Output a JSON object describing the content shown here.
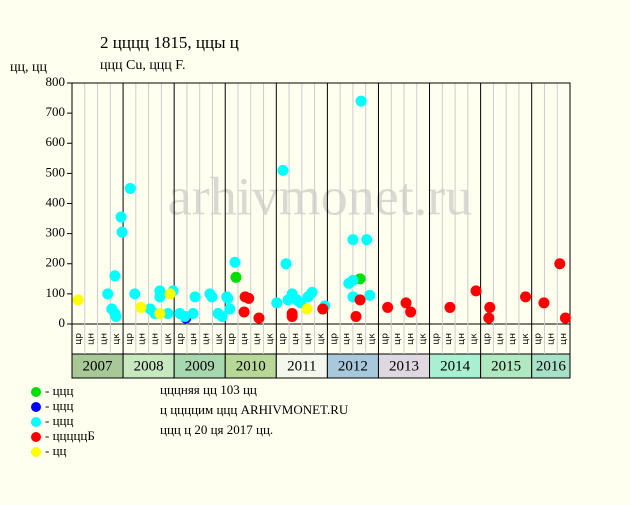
{
  "chart_data": {
    "type": "scatter",
    "title": "2 цццц 1815, ццы ц",
    "subtitle": "ццц Cu, ццц F.",
    "y_label": "цц, цц",
    "watermark": "arhivmonet.ru",
    "ylim": [
      0,
      800
    ],
    "yticks": [
      0,
      100,
      200,
      300,
      400,
      500,
      600,
      700,
      800
    ],
    "xlim": [
      2007,
      2016.75
    ],
    "year_labels": [
      "2007",
      "2008",
      "2009",
      "2010",
      "2011",
      "2012",
      "2013",
      "2014",
      "2015",
      "2016"
    ],
    "year_colors": [
      "#a8c898",
      "#c8e8c0",
      "#a8d8b0",
      "#b8d898",
      "#f4f8ec",
      "#a8c8dc",
      "#e0d8e0",
      "#a8f0d0",
      "#b0e8c0",
      "#a8e0c8"
    ],
    "column_labels": [
      "цр",
      "цн",
      "цн",
      "цк",
      "цр",
      "цн",
      "цн",
      "цк",
      "цр",
      "цн",
      "цн",
      "цк",
      "цр",
      "цн",
      "цн",
      "цк",
      "цр",
      "цн",
      "цн",
      "цк",
      "цр",
      "цн",
      "цн",
      "цк",
      "цр",
      "цн",
      "цн",
      "цк",
      "цр",
      "цн",
      "цн",
      "цк",
      "цр",
      "цн",
      "цн",
      "цк",
      "цр",
      "цн",
      "цн"
    ],
    "series": [
      {
        "name": "- ццц",
        "color": "#00e000",
        "x": [
          2010.21,
          2012.64
        ],
        "values": [
          155,
          150
        ]
      },
      {
        "name": "- ццц",
        "color": "#0000ff",
        "x": [
          2009.23
        ],
        "values": [
          20
        ]
      },
      {
        "name": "- ццц",
        "color": "#00ffff",
        "x": [
          2007.7,
          2007.78,
          2007.84,
          2007.86,
          2007.84,
          2007.96,
          2007.98,
          2008.14,
          2008.23,
          2008.53,
          2008.62,
          2008.72,
          2008.72,
          2008.88,
          2008.98,
          2009.11,
          2009.21,
          2009.37,
          2009.41,
          2009.7,
          2009.74,
          2009.86,
          2009.94,
          2010.03,
          2010.05,
          2010.09,
          2010.19,
          2011.01,
          2011.13,
          2011.19,
          2011.23,
          2011.31,
          2011.4,
          2011.48,
          2011.62,
          2011.7,
          2011.95,
          2012.42,
          2012.5,
          2012.5,
          2012.5,
          2012.66,
          2012.77,
          2012.83
        ],
        "values": [
          100,
          50,
          35,
          25,
          160,
          355,
          305,
          450,
          100,
          50,
          35,
          110,
          90,
          35,
          110,
          35,
          25,
          35,
          90,
          100,
          90,
          35,
          25,
          90,
          85,
          50,
          205,
          70,
          510,
          200,
          80,
          100,
          80,
          70,
          90,
          105,
          60,
          135,
          280,
          145,
          90,
          740,
          280,
          95
        ]
      },
      {
        "name": "- цццццБ",
        "color": "#ff0000",
        "x": [
          2010.39,
          2010.46,
          2010.37,
          2010.66,
          2011.31,
          2011.31,
          2011.91,
          2012.56,
          2012.64,
          2013.18,
          2013.54,
          2013.63,
          2014.4,
          2014.91,
          2015.16,
          2015.18,
          2015.88,
          2016.24,
          2016.55,
          2016.66
        ],
        "values": [
          90,
          85,
          40,
          20,
          25,
          35,
          50,
          25,
          80,
          55,
          70,
          40,
          55,
          110,
          20,
          55,
          90,
          70,
          200,
          20
        ]
      },
      {
        "name": "- цц",
        "color": "#ffff00",
        "x": [
          2007.12,
          2008.35,
          2008.72,
          2008.92,
          2011.6
        ],
        "values": [
          80,
          55,
          35,
          100,
          50
        ]
      }
    ],
    "footer": [
      "цццняя цц 103 цц",
      "ц ццццим ццц ARHIVMONET.RU",
      "ццц ц 20 ця 2017 цц."
    ]
  }
}
